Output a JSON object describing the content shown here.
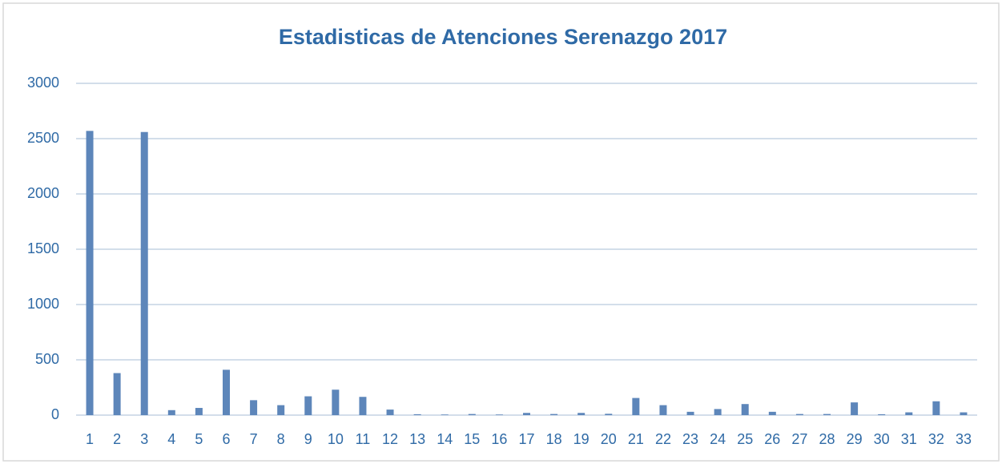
{
  "chart_data": {
    "type": "bar",
    "title": "Estadisticas de Atenciones Serenazgo 2017",
    "categories": [
      "1",
      "2",
      "3",
      "4",
      "5",
      "6",
      "7",
      "8",
      "9",
      "10",
      "11",
      "12",
      "13",
      "14",
      "15",
      "16",
      "17",
      "18",
      "19",
      "20",
      "21",
      "22",
      "23",
      "24",
      "25",
      "26",
      "27",
      "28",
      "29",
      "30",
      "31",
      "32",
      "33"
    ],
    "values": [
      2570,
      380,
      2560,
      45,
      65,
      410,
      135,
      90,
      170,
      230,
      165,
      50,
      8,
      5,
      10,
      5,
      20,
      10,
      20,
      12,
      155,
      90,
      30,
      55,
      100,
      30,
      10,
      10,
      115,
      8,
      25,
      125,
      25
    ],
    "color": "#5d86ba",
    "ylim": [
      0,
      3000
    ],
    "yticks": [
      0,
      500,
      1000,
      1500,
      2000,
      2500,
      3000
    ],
    "grid": true
  }
}
